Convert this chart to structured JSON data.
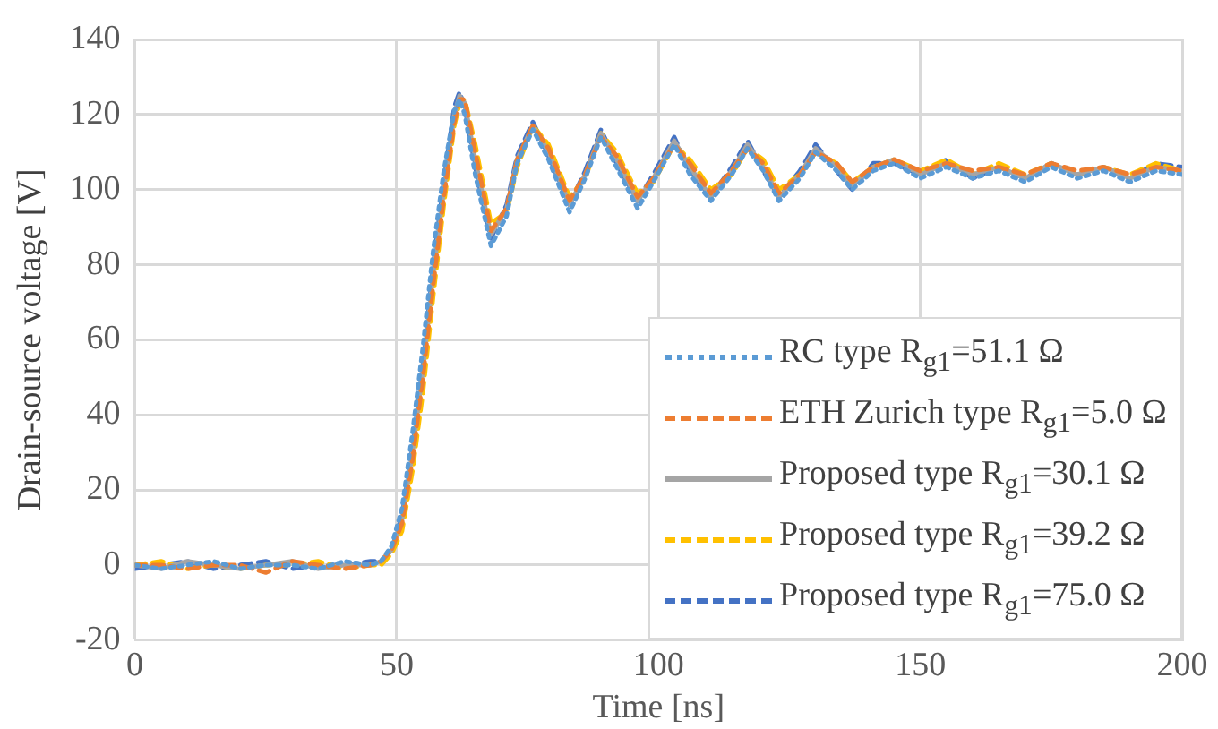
{
  "chart_data": {
    "type": "line",
    "xlabel": "Time [ns]",
    "ylabel": "Drain-source voltage [V]",
    "x": [
      0,
      5,
      10,
      15,
      20,
      25,
      30,
      35,
      40,
      45,
      47,
      49,
      51,
      53,
      55,
      57,
      59,
      61,
      62,
      63,
      65,
      68,
      71,
      73,
      76,
      79,
      83,
      86,
      89,
      92,
      96,
      99,
      103,
      106,
      110,
      114,
      117,
      120,
      123,
      127,
      130,
      134,
      137,
      141,
      145,
      150,
      155,
      160,
      165,
      170,
      175,
      180,
      185,
      190,
      195,
      200
    ],
    "xlim": [
      0,
      200
    ],
    "xticks": [
      0,
      50,
      100,
      150,
      200
    ],
    "ylim": [
      -20,
      140
    ],
    "yticks": [
      -20,
      0,
      20,
      40,
      60,
      80,
      100,
      120,
      140
    ],
    "grid": true,
    "legend": "bottom right",
    "marker": "none",
    "series": [
      {
        "name": "RC type R$_{g1}$=51.1 Ω",
        "color": "#5b9bd5",
        "line_style": "dotted",
        "values": [
          0,
          -1,
          0,
          1,
          -1,
          0,
          0,
          -1,
          1,
          0,
          1,
          5,
          15,
          35,
          58,
          84,
          105,
          121,
          124,
          120,
          104,
          85,
          93,
          107,
          116,
          108,
          94,
          103,
          114,
          106,
          95,
          102,
          112,
          104,
          97,
          104,
          111,
          105,
          97,
          103,
          110,
          105,
          100,
          105,
          107,
          103,
          106,
          103,
          105,
          102,
          106,
          103,
          105,
          102,
          105,
          104
        ]
      },
      {
        "name": "ETH Zurich type R$_{g1}$=5.0 Ω",
        "color": "#ed7d31",
        "line_style": "dashed",
        "values": [
          0,
          0,
          -1,
          0,
          0,
          -2,
          1,
          0,
          -1,
          0,
          1,
          4,
          11,
          28,
          50,
          75,
          98,
          118,
          124,
          124,
          110,
          89,
          95,
          108,
          117,
          111,
          97,
          104,
          114,
          109,
          98,
          103,
          112,
          107,
          99,
          105,
          111,
          107,
          99,
          104,
          110,
          107,
          102,
          106,
          108,
          105,
          107,
          105,
          106,
          104,
          107,
          105,
          106,
          104,
          106,
          105
        ]
      },
      {
        "name": "Proposed type R$_{g1}$=30.1 Ω",
        "color": "#a5a5a5",
        "line_style": "solid",
        "values": [
          0,
          -1,
          1,
          0,
          -1,
          0,
          1,
          -1,
          0,
          0,
          1,
          4,
          12,
          30,
          52,
          78,
          100,
          120,
          125,
          123,
          108,
          88,
          95,
          108,
          117,
          110,
          96,
          104,
          115,
          108,
          97,
          103,
          113,
          106,
          98,
          105,
          112,
          106,
          98,
          104,
          111,
          106,
          101,
          106,
          108,
          104,
          107,
          104,
          106,
          103,
          107,
          104,
          106,
          103,
          106,
          105
        ]
      },
      {
        "name": "Proposed type R$_{g1}$=39.2 Ω",
        "color": "#ffc000",
        "line_style": "dashed",
        "values": [
          0,
          1,
          -1,
          0,
          -1,
          0,
          0,
          1,
          -1,
          0,
          0,
          3,
          9,
          25,
          46,
          72,
          96,
          117,
          123,
          124,
          112,
          91,
          94,
          106,
          117,
          112,
          98,
          103,
          115,
          110,
          99,
          102,
          112,
          108,
          100,
          104,
          111,
          108,
          100,
          104,
          110,
          107,
          102,
          106,
          108,
          105,
          108,
          104,
          107,
          104,
          107,
          104,
          106,
          104,
          107,
          105
        ]
      },
      {
        "name": "Proposed type R$_{g1}$=75.0 Ω",
        "color": "#4472c4",
        "line_style": "dashed",
        "values": [
          -1,
          0,
          1,
          -1,
          0,
          1,
          -1,
          0,
          0,
          1,
          1,
          4,
          13,
          31,
          53,
          80,
          102,
          122,
          126,
          122,
          106,
          87,
          96,
          109,
          118,
          109,
          96,
          105,
          116,
          107,
          97,
          104,
          114,
          105,
          98,
          106,
          113,
          105,
          98,
          105,
          112,
          105,
          100,
          107,
          107,
          104,
          108,
          103,
          106,
          103,
          107,
          104,
          106,
          103,
          107,
          106
        ]
      }
    ]
  }
}
